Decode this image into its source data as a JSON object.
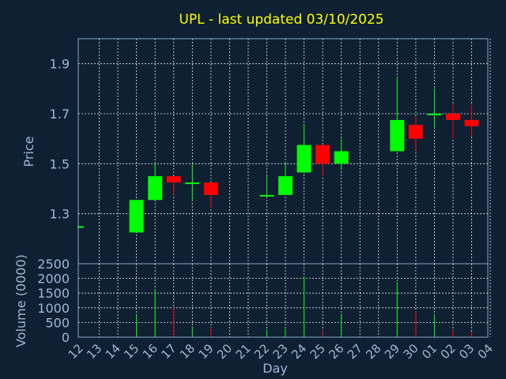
{
  "chart_data": {
    "type": "candlestick",
    "title": "UPL - last updated 03/10/2025",
    "xlabel": "Day",
    "ylabel": "Price",
    "volume_label": "Volume (0000)",
    "price_ticks": [
      "1.3",
      "1.5",
      "1.7",
      "1.9"
    ],
    "volume_ticks": [
      "0",
      "500",
      "1000",
      "1500",
      "2000",
      "2500"
    ],
    "ylim": [
      1.1,
      2.0
    ],
    "volume_ylim": [
      0,
      2500
    ],
    "grid": true,
    "colors": {
      "up": "#00ff00",
      "down": "#ff0000",
      "title": "#ffff00",
      "axis": "#9fb7d6",
      "background": "#0f2033"
    },
    "days": [
      "12",
      "13",
      "14",
      "15",
      "16",
      "17",
      "18",
      "19",
      "20",
      "21",
      "22",
      "23",
      "24",
      "25",
      "26",
      "27",
      "28",
      "29",
      "30",
      "01",
      "02",
      "03",
      "04"
    ],
    "candles": [
      {
        "day": "12",
        "open": 1.25,
        "high": 1.25,
        "low": 1.25,
        "close": 1.25,
        "volume": 0
      },
      {
        "day": "15",
        "open": 1.225,
        "high": 1.355,
        "low": 1.225,
        "close": 1.355,
        "volume": 760
      },
      {
        "day": "16",
        "open": 1.355,
        "high": 1.5,
        "low": 1.355,
        "close": 1.45,
        "volume": 1620
      },
      {
        "day": "17",
        "open": 1.45,
        "high": 1.45,
        "low": 1.375,
        "close": 1.425,
        "volume": 1000
      },
      {
        "day": "18",
        "open": 1.425,
        "high": 1.5,
        "low": 1.35,
        "close": 1.425,
        "volume": 360
      },
      {
        "day": "19",
        "open": 1.425,
        "high": 1.425,
        "low": 1.325,
        "close": 1.375,
        "volume": 330
      },
      {
        "day": "22",
        "open": 1.375,
        "high": 1.45,
        "low": 1.375,
        "close": 1.375,
        "volume": 260
      },
      {
        "day": "23",
        "open": 1.375,
        "high": 1.5,
        "low": 1.375,
        "close": 1.45,
        "volume": 280
      },
      {
        "day": "24",
        "open": 1.465,
        "high": 1.655,
        "low": 1.465,
        "close": 1.575,
        "volume": 2050
      },
      {
        "day": "25",
        "open": 1.575,
        "high": 1.575,
        "low": 1.45,
        "close": 1.5,
        "volume": 240
      },
      {
        "day": "26",
        "open": 1.5,
        "high": 1.6,
        "low": 1.475,
        "close": 1.55,
        "volume": 790
      },
      {
        "day": "29",
        "open": 1.55,
        "high": 1.84,
        "low": 1.55,
        "close": 1.675,
        "volume": 1870
      },
      {
        "day": "30",
        "open": 1.655,
        "high": 1.69,
        "low": 1.555,
        "close": 1.6,
        "volume": 890
      },
      {
        "day": "01",
        "open": 1.7,
        "high": 1.8,
        "low": 1.645,
        "close": 1.7,
        "volume": 760
      },
      {
        "day": "02",
        "open": 1.7,
        "high": 1.74,
        "low": 1.6,
        "close": 1.675,
        "volume": 230
      },
      {
        "day": "03",
        "open": 1.675,
        "high": 1.735,
        "low": 1.61,
        "close": 1.65,
        "volume": 190
      }
    ]
  }
}
